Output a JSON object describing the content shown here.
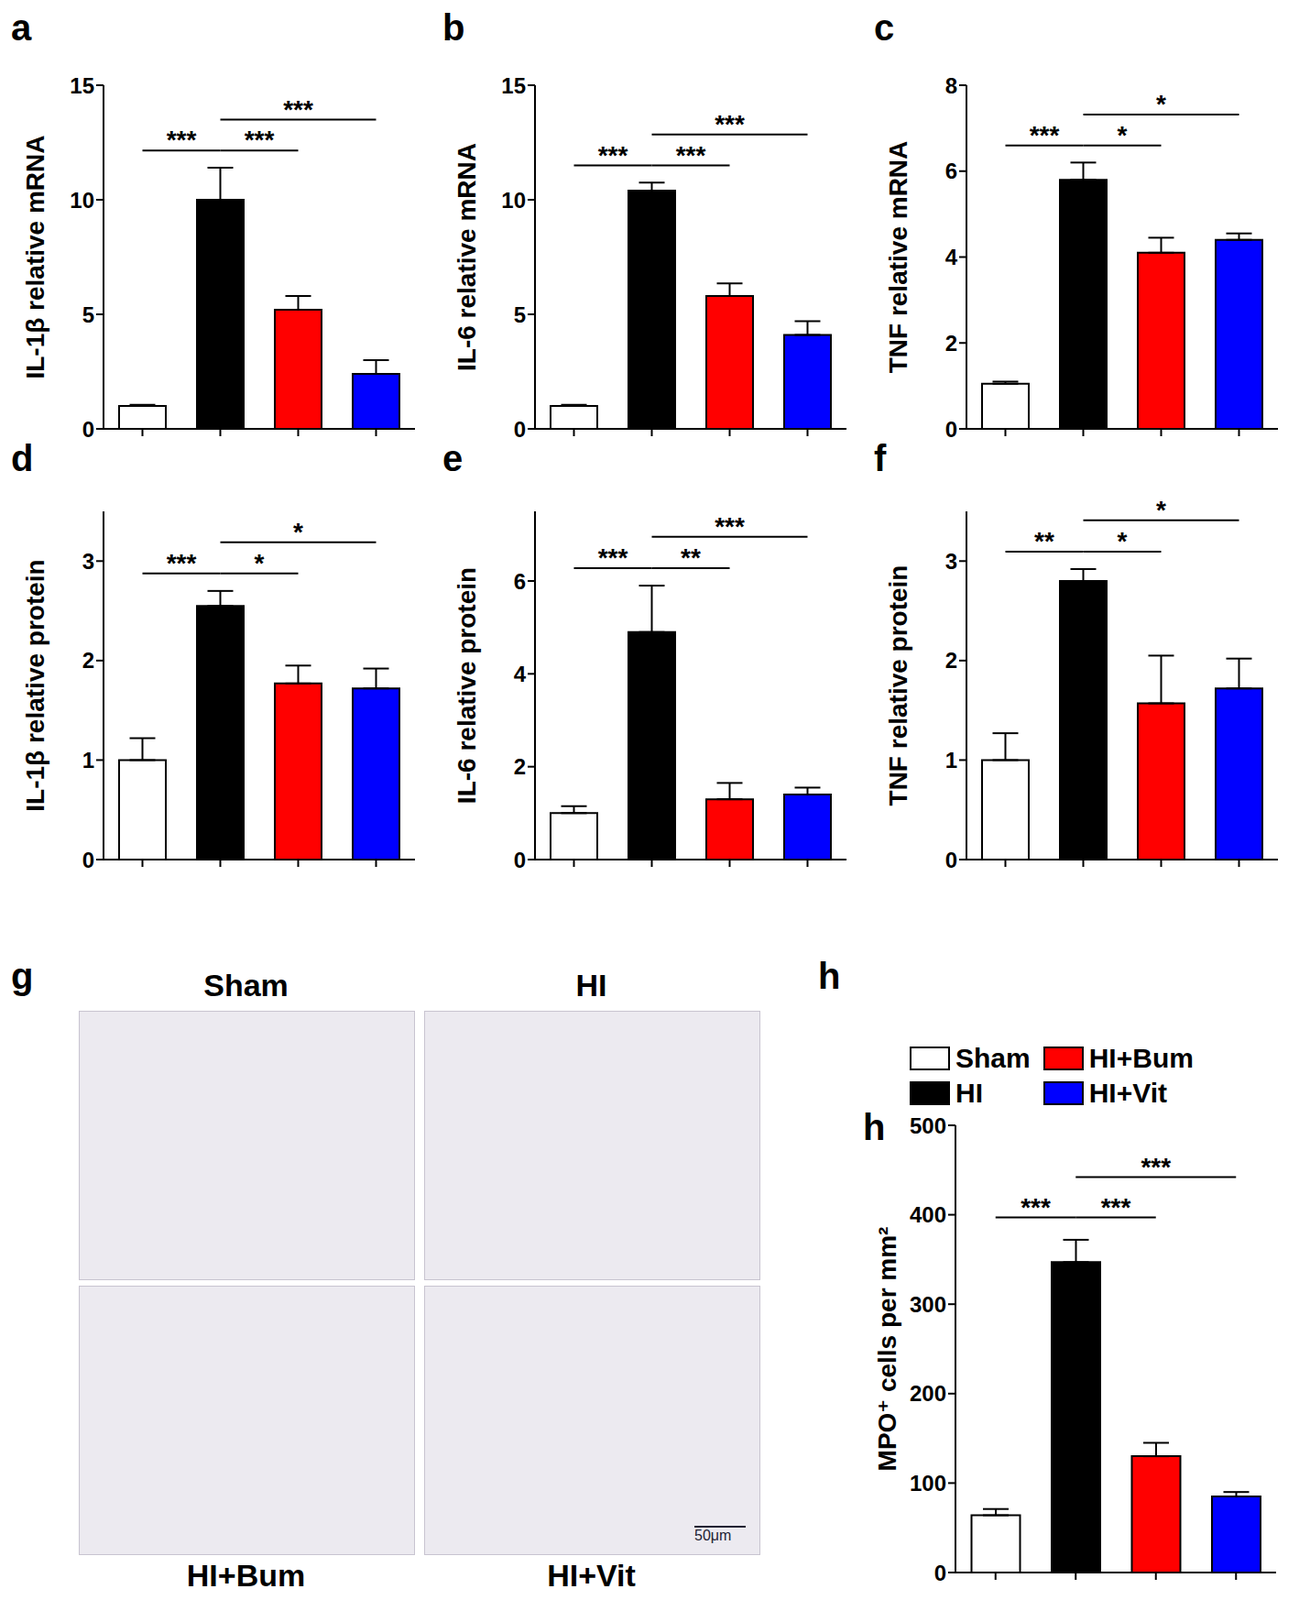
{
  "chart_data": [
    {
      "type": "bar",
      "title": "a",
      "y_label": "IL-1β relative mRNA",
      "categories": [
        null,
        null,
        null,
        null
      ],
      "values": [
        1.0,
        10.0,
        5.2,
        2.4
      ],
      "errors": [
        0.05,
        1.4,
        0.6,
        0.6
      ],
      "colors": [
        "#ffffff",
        "#000000",
        "#ff0000",
        "#0000ff"
      ],
      "ylim": [
        0,
        15
      ],
      "yticks": [
        0,
        5,
        10,
        15
      ],
      "tick_labels": "y",
      "annotations": [
        {
          "from": 0,
          "to": 1,
          "text": "***"
        },
        {
          "from": 1,
          "to": 2,
          "text": "***"
        },
        {
          "from": 1,
          "to": 3,
          "text": "***"
        }
      ]
    },
    {
      "type": "bar",
      "title": "b",
      "y_label": "IL-6 relative mRNA",
      "categories": [
        null,
        null,
        null,
        null
      ],
      "values": [
        1.0,
        10.4,
        5.8,
        4.1
      ],
      "errors": [
        0.05,
        0.35,
        0.55,
        0.6
      ],
      "colors": [
        "#ffffff",
        "#000000",
        "#ff0000",
        "#0000ff"
      ],
      "ylim": [
        0,
        15
      ],
      "yticks": [
        0,
        5,
        10,
        15
      ],
      "tick_labels": "y",
      "annotations": [
        {
          "from": 0,
          "to": 1,
          "text": "***"
        },
        {
          "from": 1,
          "to": 2,
          "text": "***"
        },
        {
          "from": 1,
          "to": 3,
          "text": "***"
        }
      ]
    },
    {
      "type": "bar",
      "title": "c",
      "y_label": "TNF relative mRNA",
      "categories": [
        null,
        null,
        null,
        null
      ],
      "values": [
        1.05,
        5.8,
        4.1,
        4.4
      ],
      "errors": [
        0.05,
        0.4,
        0.35,
        0.15
      ],
      "colors": [
        "#ffffff",
        "#000000",
        "#ff0000",
        "#0000ff"
      ],
      "ylim": [
        0,
        8
      ],
      "yticks": [
        0,
        2,
        4,
        6,
        8
      ],
      "tick_labels": "y",
      "annotations": [
        {
          "from": 0,
          "to": 1,
          "text": "***"
        },
        {
          "from": 1,
          "to": 2,
          "text": "*"
        },
        {
          "from": 1,
          "to": 3,
          "text": "*"
        }
      ]
    },
    {
      "type": "bar",
      "title": "d",
      "y_label": "IL-1β relative protein",
      "categories": [
        null,
        null,
        null,
        null
      ],
      "values": [
        1.0,
        2.55,
        1.77,
        1.72
      ],
      "errors": [
        0.22,
        0.15,
        0.18,
        0.2
      ],
      "colors": [
        "#ffffff",
        "#000000",
        "#ff0000",
        "#0000ff"
      ],
      "ylim": [
        0,
        3.5
      ],
      "yticks": [
        0,
        1,
        2,
        3
      ],
      "tick_labels": "y",
      "annotations": [
        {
          "from": 0,
          "to": 1,
          "text": "***"
        },
        {
          "from": 1,
          "to": 2,
          "text": "*"
        },
        {
          "from": 1,
          "to": 3,
          "text": "*"
        }
      ]
    },
    {
      "type": "bar",
      "title": "e",
      "y_label": "IL-6 relative protein",
      "categories": [
        null,
        null,
        null,
        null
      ],
      "values": [
        1.0,
        4.9,
        1.3,
        1.4
      ],
      "errors": [
        0.15,
        1.0,
        0.35,
        0.15
      ],
      "colors": [
        "#ffffff",
        "#000000",
        "#ff0000",
        "#0000ff"
      ],
      "ylim": [
        0,
        7.5
      ],
      "yticks": [
        0,
        2,
        4,
        6
      ],
      "tick_labels": "y",
      "annotations": [
        {
          "from": 0,
          "to": 1,
          "text": "***"
        },
        {
          "from": 1,
          "to": 2,
          "text": "**"
        },
        {
          "from": 1,
          "to": 3,
          "text": "***"
        }
      ]
    },
    {
      "type": "bar",
      "title": "f",
      "y_label": "TNF relative protein",
      "categories": [
        null,
        null,
        null,
        null
      ],
      "values": [
        1.0,
        2.8,
        1.57,
        1.72
      ],
      "errors": [
        0.27,
        0.12,
        0.48,
        0.3
      ],
      "colors": [
        "#ffffff",
        "#000000",
        "#ff0000",
        "#0000ff"
      ],
      "ylim": [
        0,
        3.5
      ],
      "yticks": [
        0,
        1,
        2,
        3
      ],
      "tick_labels": "y",
      "annotations": [
        {
          "from": 0,
          "to": 1,
          "text": "**"
        },
        {
          "from": 1,
          "to": 2,
          "text": "*"
        },
        {
          "from": 1,
          "to": 3,
          "text": "*"
        }
      ]
    },
    {
      "type": "bar",
      "title": "h",
      "y_label": "MPO⁺ cells per mm²",
      "categories": [
        null,
        null,
        null,
        null
      ],
      "values": [
        64,
        347,
        130,
        85
      ],
      "errors": [
        7,
        25,
        15,
        5
      ],
      "colors": [
        "#ffffff",
        "#000000",
        "#ff0000",
        "#0000ff"
      ],
      "ylim": [
        0,
        500
      ],
      "yticks": [
        0,
        100,
        200,
        300,
        400,
        500
      ],
      "tick_labels": "y",
      "annotations": [
        {
          "from": 0,
          "to": 1,
          "text": "***"
        },
        {
          "from": 1,
          "to": 2,
          "text": "***"
        },
        {
          "from": 1,
          "to": 3,
          "text": "***"
        }
      ]
    }
  ],
  "legend_entries": [
    {
      "name": "Sham",
      "color": "#ffffff"
    },
    {
      "name": "HI",
      "color": "#000000"
    },
    {
      "name": "HI+Bum",
      "color": "#ff0000"
    },
    {
      "name": "HI+Vit",
      "color": "#0000ff"
    }
  ],
  "image_panel": {
    "title": "g",
    "labels": [
      "Sham",
      "HI",
      "HI+Bum",
      "HI+Vit"
    ],
    "scale_bar": "50μm"
  }
}
